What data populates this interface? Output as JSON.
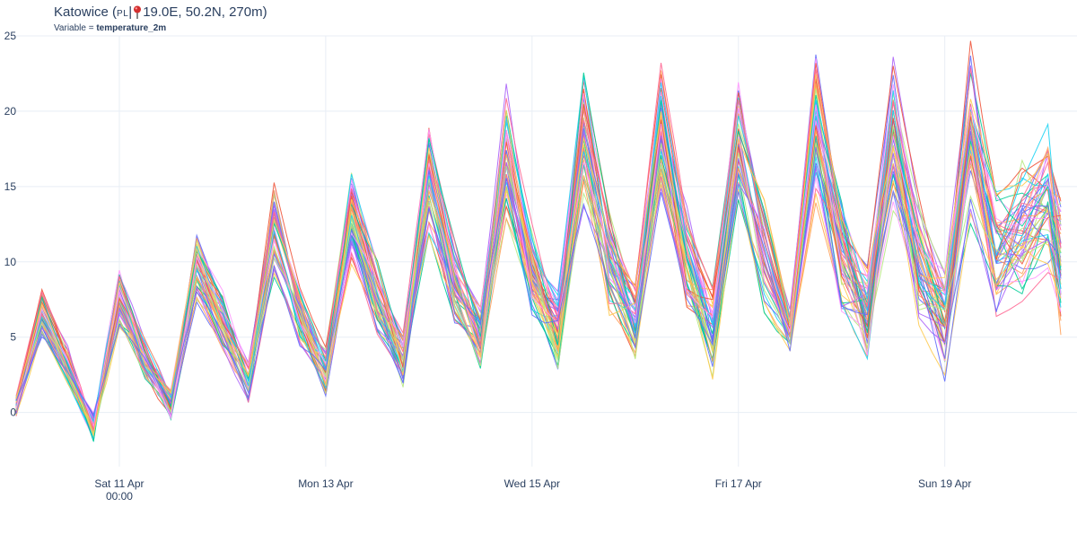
{
  "title": {
    "location": "Katowice",
    "country": "PL",
    "coords": "19.0E, 50.2N, 270m)",
    "variable_label": "Variable = ",
    "variable_name": "temperature_2m"
  },
  "pin_icon": "location-pin-icon",
  "colors": {
    "grid": "#e8eef5",
    "text": "#2a3f5f",
    "series": [
      "#636efa",
      "#EF553B",
      "#00cc96",
      "#ab63fa",
      "#FFA15A",
      "#19d3f3",
      "#FF6692",
      "#B6E880",
      "#FF97FF",
      "#FECB52"
    ]
  },
  "chart_data": {
    "type": "line",
    "title": "Katowice (PL| 19.0E, 50.2N, 270m)",
    "subtitle": "Variable = temperature_2m",
    "ylabel": "",
    "xlabel": "",
    "ylim": [
      -3,
      25
    ],
    "yticks": [
      0,
      5,
      10,
      15,
      20,
      25
    ],
    "x_start": "2026-04-10T00:00",
    "x_end": "2026-04-20T03:00",
    "xticks": [
      {
        "x": "2026-04-11T00:00",
        "label": "Sat 11 Apr",
        "sublabel": "00:00"
      },
      {
        "x": "2026-04-13T00:00",
        "label": "Mon 13 Apr"
      },
      {
        "x": "2026-04-15T00:00",
        "label": "Wed 15 Apr"
      },
      {
        "x": "2026-04-17T00:00",
        "label": "Fri 17 Apr"
      },
      {
        "x": "2026-04-19T00:00",
        "label": "Sun 19 Apr"
      }
    ],
    "grid": true,
    "legend": "none",
    "ensemble_members": 51,
    "ensemble_mean": {
      "x": [
        "2026-04-10T00:00",
        "2026-04-10T06:00",
        "2026-04-10T12:00",
        "2026-04-10T18:00",
        "2026-04-11T00:00",
        "2026-04-11T06:00",
        "2026-04-11T12:00",
        "2026-04-11T18:00",
        "2026-04-12T00:00",
        "2026-04-12T06:00",
        "2026-04-12T12:00",
        "2026-04-12T18:00",
        "2026-04-13T00:00",
        "2026-04-13T06:00",
        "2026-04-13T12:00",
        "2026-04-13T18:00",
        "2026-04-14T00:00",
        "2026-04-14T06:00",
        "2026-04-14T12:00",
        "2026-04-14T18:00",
        "2026-04-15T00:00",
        "2026-04-15T06:00",
        "2026-04-15T12:00",
        "2026-04-15T18:00",
        "2026-04-16T00:00",
        "2026-04-16T06:00",
        "2026-04-16T12:00",
        "2026-04-16T18:00",
        "2026-04-17T00:00",
        "2026-04-17T06:00",
        "2026-04-17T12:00",
        "2026-04-17T18:00",
        "2026-04-18T00:00",
        "2026-04-18T06:00",
        "2026-04-18T12:00",
        "2026-04-18T18:00",
        "2026-04-19T00:00",
        "2026-04-19T06:00",
        "2026-04-19T12:00",
        "2026-04-19T18:00",
        "2026-04-20T00:00",
        "2026-04-20T03:00"
      ],
      "y": [
        0.5,
        6.5,
        3.0,
        -1.0,
        7.5,
        3.5,
        0.5,
        9.5,
        6.0,
        2.0,
        12.0,
        6.5,
        2.5,
        13.0,
        7.5,
        3.5,
        15.5,
        8.5,
        5.0,
        17.0,
        9.0,
        5.5,
        18.0,
        10.0,
        6.0,
        18.5,
        10.0,
        5.5,
        18.0,
        10.5,
        6.0,
        19.0,
        10.5,
        6.5,
        18.0,
        10.0,
        6.0,
        18.5,
        10.5,
        12.0,
        14.0,
        10.0
      ]
    }
  }
}
